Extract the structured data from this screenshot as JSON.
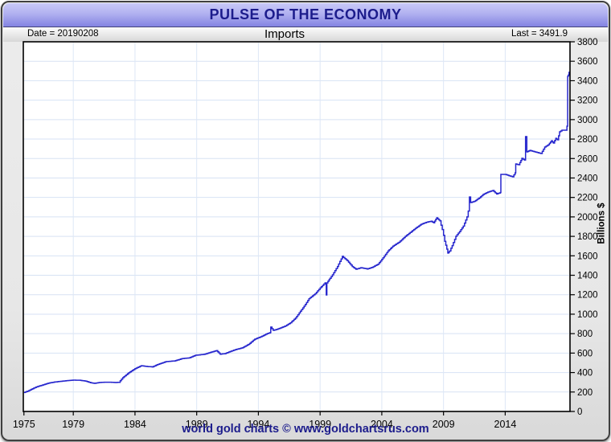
{
  "window": {
    "title": "PULSE OF THE ECONOMY"
  },
  "header": {
    "date_label": "Date = 20190208",
    "series_label": "Imports",
    "last_label": "Last = 3491.9"
  },
  "footer": {
    "credit": "world gold charts © www.goldchartsrus.com"
  },
  "colors": {
    "title_text": "#1c1c8c",
    "titlebar_top": "#c9c9f8",
    "titlebar_bottom": "#8383e2",
    "frame_background": "#e9e9e9",
    "plot_background": "#ffffff",
    "line": "#2525cd",
    "grid_horizontal": "#d7e2f4",
    "grid_vertical": "#dde7f6",
    "axis_text": "#000000",
    "footer_text": "#1c1c8c"
  },
  "chart_data": {
    "type": "line",
    "style": "step-after",
    "title": "Imports",
    "xlabel": "",
    "ylabel": "Billions $",
    "xlim": [
      1974.95,
      2019.25
    ],
    "ylim": [
      0,
      3800
    ],
    "y_tick_step": 200,
    "x_ticks": [
      1975,
      1979,
      1984,
      1989,
      1994,
      1999,
      2004,
      2009,
      2014
    ],
    "grid": true,
    "legend": "none",
    "date_stamp": "20190208",
    "last_value": 3491.9,
    "series": [
      {
        "name": "Imports",
        "points": [
          [
            1975.0,
            195
          ],
          [
            1975.3,
            208
          ],
          [
            1975.6,
            228
          ],
          [
            1976.0,
            252
          ],
          [
            1976.5,
            272
          ],
          [
            1977.0,
            292
          ],
          [
            1977.5,
            303
          ],
          [
            1978.0,
            310
          ],
          [
            1978.5,
            317
          ],
          [
            1979.0,
            322
          ],
          [
            1979.5,
            321
          ],
          [
            1980.0,
            312
          ],
          [
            1980.4,
            296
          ],
          [
            1980.7,
            289
          ],
          [
            1981.0,
            296
          ],
          [
            1981.5,
            301
          ],
          [
            1982.0,
            301
          ],
          [
            1982.4,
            297
          ],
          [
            1982.7,
            300
          ],
          [
            1983.0,
            347
          ],
          [
            1983.5,
            399
          ],
          [
            1984.0,
            440
          ],
          [
            1984.5,
            470
          ],
          [
            1985.0,
            462
          ],
          [
            1985.4,
            458
          ],
          [
            1985.9,
            486
          ],
          [
            1986.5,
            512
          ],
          [
            1987.2,
            520
          ],
          [
            1987.8,
            543
          ],
          [
            1988.4,
            551
          ],
          [
            1988.9,
            578
          ],
          [
            1989.6,
            587
          ],
          [
            1990.2,
            611
          ],
          [
            1990.6,
            626
          ],
          [
            1990.9,
            589
          ],
          [
            1991.3,
            595
          ],
          [
            1991.6,
            611
          ],
          [
            1992.1,
            634
          ],
          [
            1992.7,
            655
          ],
          [
            1993.2,
            690
          ],
          [
            1993.7,
            743
          ],
          [
            1994.2,
            768
          ],
          [
            1994.7,
            800
          ],
          [
            1994.95,
            810
          ],
          [
            1995.0,
            867
          ],
          [
            1995.2,
            834
          ],
          [
            1995.5,
            845
          ],
          [
            1995.8,
            859
          ],
          [
            1996.2,
            880
          ],
          [
            1996.6,
            912
          ],
          [
            1997.0,
            960
          ],
          [
            1997.4,
            1030
          ],
          [
            1997.8,
            1100
          ],
          [
            1998.1,
            1160
          ],
          [
            1998.6,
            1210
          ],
          [
            1999.0,
            1270
          ],
          [
            1999.4,
            1322
          ],
          [
            1999.5,
            1198
          ],
          [
            1999.55,
            1322
          ],
          [
            1999.8,
            1370
          ],
          [
            2000.0,
            1404
          ],
          [
            2000.4,
            1490
          ],
          [
            2000.8,
            1594
          ],
          [
            2001.2,
            1550
          ],
          [
            2001.6,
            1490
          ],
          [
            2001.9,
            1462
          ],
          [
            2002.3,
            1478
          ],
          [
            2002.8,
            1465
          ],
          [
            2003.2,
            1480
          ],
          [
            2003.7,
            1515
          ],
          [
            2004.1,
            1580
          ],
          [
            2004.5,
            1650
          ],
          [
            2004.9,
            1700
          ],
          [
            2005.4,
            1740
          ],
          [
            2005.9,
            1800
          ],
          [
            2006.3,
            1840
          ],
          [
            2006.8,
            1890
          ],
          [
            2007.2,
            1925
          ],
          [
            2007.6,
            1945
          ],
          [
            2008.0,
            1955
          ],
          [
            2008.2,
            1940
          ],
          [
            2008.45,
            1991
          ],
          [
            2008.7,
            1960
          ],
          [
            2008.9,
            1870
          ],
          [
            2009.1,
            1750
          ],
          [
            2009.35,
            1628
          ],
          [
            2009.5,
            1650
          ],
          [
            2009.7,
            1705
          ],
          [
            2010.0,
            1801
          ],
          [
            2010.3,
            1850
          ],
          [
            2010.6,
            1905
          ],
          [
            2010.9,
            2000
          ],
          [
            2011.0,
            2060
          ],
          [
            2011.1,
            2205
          ],
          [
            2011.2,
            2148
          ],
          [
            2011.5,
            2160
          ],
          [
            2011.9,
            2195
          ],
          [
            2012.2,
            2230
          ],
          [
            2012.6,
            2255
          ],
          [
            2013.0,
            2272
          ],
          [
            2013.3,
            2235
          ],
          [
            2013.6,
            2250
          ],
          [
            2013.65,
            2437
          ],
          [
            2014.0,
            2437
          ],
          [
            2014.3,
            2424
          ],
          [
            2014.6,
            2412
          ],
          [
            2014.8,
            2453
          ],
          [
            2014.85,
            2544
          ],
          [
            2015.1,
            2536
          ],
          [
            2015.35,
            2602
          ],
          [
            2015.55,
            2585
          ],
          [
            2015.65,
            2825
          ],
          [
            2015.75,
            2668
          ],
          [
            2016.0,
            2684
          ],
          [
            2016.4,
            2668
          ],
          [
            2016.9,
            2652
          ],
          [
            2017.2,
            2718
          ],
          [
            2017.5,
            2742
          ],
          [
            2017.75,
            2783
          ],
          [
            2017.9,
            2759
          ],
          [
            2018.1,
            2808
          ],
          [
            2018.25,
            2792
          ],
          [
            2018.4,
            2875
          ],
          [
            2018.6,
            2891
          ],
          [
            2018.9,
            2891
          ],
          [
            2019.0,
            2933
          ],
          [
            2019.04,
            2933
          ],
          [
            2019.06,
            3444
          ],
          [
            2019.1,
            3453
          ],
          [
            2019.13,
            3460
          ],
          [
            2019.17,
            3491.9
          ]
        ]
      }
    ]
  }
}
